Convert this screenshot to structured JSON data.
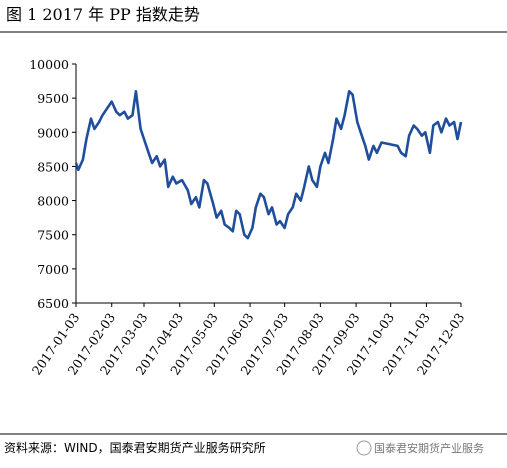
{
  "chart_data": {
    "type": "line",
    "title": "图 1   2017 年 PP 指数走势",
    "source": "资料来源：WIND，国泰君安期货产业服务研究所",
    "watermark": "国泰君安期货产业服务",
    "x": [
      "2017-01-03",
      "2017-01-05",
      "2017-01-09",
      "2017-01-12",
      "2017-01-16",
      "2017-01-19",
      "2017-01-23",
      "2017-01-26",
      "2017-02-03",
      "2017-02-07",
      "2017-02-10",
      "2017-02-14",
      "2017-02-17",
      "2017-02-21",
      "2017-02-24",
      "2017-02-28",
      "2017-03-03",
      "2017-03-07",
      "2017-03-10",
      "2017-03-14",
      "2017-03-17",
      "2017-03-21",
      "2017-03-24",
      "2017-03-28",
      "2017-03-31",
      "2017-04-05",
      "2017-04-10",
      "2017-04-13",
      "2017-04-17",
      "2017-04-20",
      "2017-04-24",
      "2017-04-27",
      "2017-05-02",
      "2017-05-05",
      "2017-05-09",
      "2017-05-12",
      "2017-05-16",
      "2017-05-19",
      "2017-05-22",
      "2017-05-25",
      "2017-05-29",
      "2017-06-01",
      "2017-06-05",
      "2017-06-08",
      "2017-06-12",
      "2017-06-15",
      "2017-06-19",
      "2017-06-22",
      "2017-06-26",
      "2017-06-29",
      "2017-07-03",
      "2017-07-06",
      "2017-07-10",
      "2017-07-13",
      "2017-07-17",
      "2017-07-20",
      "2017-07-24",
      "2017-07-27",
      "2017-07-31",
      "2017-08-03",
      "2017-08-07",
      "2017-08-10",
      "2017-08-14",
      "2017-08-17",
      "2017-08-21",
      "2017-08-24",
      "2017-08-28",
      "2017-08-31",
      "2017-09-04",
      "2017-09-07",
      "2017-09-11",
      "2017-09-14",
      "2017-09-18",
      "2017-09-21",
      "2017-09-25",
      "2017-10-09",
      "2017-10-12",
      "2017-10-16",
      "2017-10-19",
      "2017-10-23",
      "2017-10-26",
      "2017-10-30",
      "2017-11-02",
      "2017-11-06",
      "2017-11-09",
      "2017-11-13",
      "2017-11-16",
      "2017-11-20",
      "2017-11-23",
      "2017-11-27",
      "2017-11-30",
      "2017-12-03"
    ],
    "series": [
      {
        "color": "#1f4e9c",
        "values": [
          8550,
          8450,
          8600,
          8900,
          9200,
          9050,
          9150,
          9250,
          9450,
          9300,
          9250,
          9300,
          9200,
          9250,
          9600,
          9050,
          8900,
          8700,
          8550,
          8650,
          8500,
          8600,
          8200,
          8350,
          8250,
          8300,
          8150,
          7950,
          8050,
          7900,
          8300,
          8250,
          7950,
          7750,
          7850,
          7650,
          7600,
          7550,
          7850,
          7800,
          7500,
          7450,
          7600,
          7900,
          8100,
          8050,
          7800,
          7900,
          7650,
          7700,
          7600,
          7800,
          7900,
          8100,
          8000,
          8200,
          8500,
          8300,
          8200,
          8500,
          8700,
          8550,
          8900,
          9200,
          9050,
          9250,
          9600,
          9550,
          9150,
          9000,
          8800,
          8600,
          8800,
          8700,
          8850,
          8800,
          8700,
          8650,
          8950,
          9100,
          9050,
          8950,
          9000,
          8700,
          9100,
          9150,
          9000,
          9200,
          9100,
          9150,
          8900,
          9150
        ]
      }
    ],
    "xlim": [
      "2017-01-03",
      "2017-12-03"
    ],
    "xticks": [
      "2017-01-03",
      "2017-02-03",
      "2017-03-03",
      "2017-04-03",
      "2017-05-03",
      "2017-06-03",
      "2017-07-03",
      "2017-08-03",
      "2017-09-03",
      "2017-10-03",
      "2017-11-03",
      "2017-12-03"
    ],
    "ylim": [
      6500,
      10000
    ],
    "yticks": [
      6500,
      7000,
      7500,
      8000,
      8500,
      9000,
      9500,
      10000
    ]
  }
}
